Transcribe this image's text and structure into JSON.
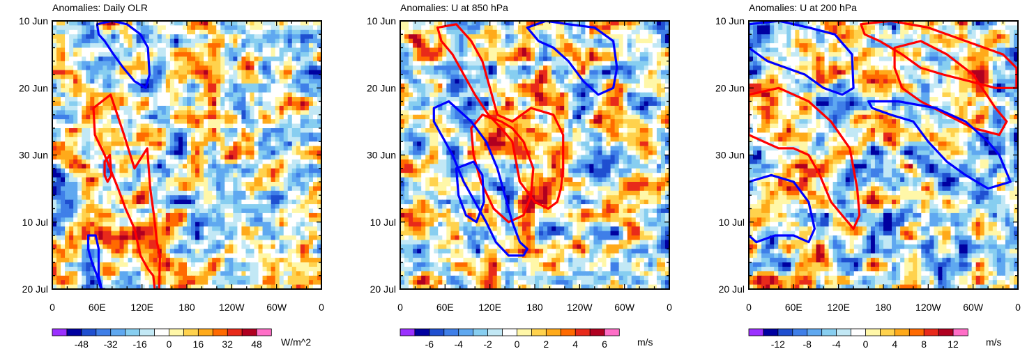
{
  "chart_data": [
    {
      "type": "heatmap",
      "title": "Anomalies: Daily OLR",
      "xlabel": "",
      "ylabel": "",
      "x_tick_labels": [
        "0",
        "60E",
        "120E",
        "180",
        "120W",
        "60W",
        "0"
      ],
      "x_range_deg": [
        0,
        360
      ],
      "y_tick_labels": [
        "10 Jun",
        "20 Jun",
        "30 Jun",
        "10 Jul",
        "20 Jul"
      ],
      "y_range_days": [
        0,
        40
      ],
      "colorbar": {
        "labels": [
          "-48",
          "-32",
          "-16",
          "0",
          "16",
          "32",
          "48"
        ],
        "units": "W/m^2",
        "levels": [
          -56,
          -48,
          -40,
          -32,
          -24,
          -16,
          -8,
          0,
          8,
          16,
          24,
          32,
          40,
          48,
          56
        ],
        "colors": [
          "#9b30ff",
          "#0000a0",
          "#1f4fd0",
          "#3f7fe8",
          "#5fa8f0",
          "#87cef0",
          "#c2e8f5",
          "#ffffff",
          "#fff7a8",
          "#ffd24d",
          "#ffaa1a",
          "#ff6a00",
          "#e82a1a",
          "#b00020",
          "#ff6ec7"
        ]
      },
      "contours": [
        {
          "sign": "positive",
          "color": "#ff0000",
          "points": [
            [
              55,
              13
            ],
            [
              78,
              11
            ],
            [
              96,
              17
            ],
            [
              110,
              22
            ],
            [
              127,
              19
            ],
            [
              131,
              25
            ],
            [
              136,
              29
            ],
            [
              140,
              33
            ],
            [
              144,
              35
            ],
            [
              143,
              40
            ],
            [
              138,
              41
            ],
            [
              135,
              38
            ],
            [
              128,
              37
            ],
            [
              118,
              35
            ],
            [
              110,
              31
            ],
            [
              98,
              28
            ],
            [
              88,
              25
            ],
            [
              70,
              20
            ],
            [
              57,
              17
            ]
          ]
        },
        {
          "sign": "positive",
          "color": "#ff0000",
          "points": [
            [
              70,
              21
            ],
            [
              77,
              20
            ],
            [
              79,
              23
            ],
            [
              74,
              24
            ],
            [
              70,
              23
            ]
          ]
        },
        {
          "sign": "negative",
          "color": "#0000ff",
          "points": [
            [
              60,
              0.5
            ],
            [
              80,
              0
            ],
            [
              100,
              0.5
            ],
            [
              118,
              2
            ],
            [
              128,
              4
            ],
            [
              130,
              8
            ],
            [
              125,
              10
            ],
            [
              110,
              9
            ],
            [
              95,
              7
            ],
            [
              82,
              5
            ],
            [
              70,
              3
            ],
            [
              62,
              2
            ]
          ]
        },
        {
          "sign": "negative",
          "color": "#0000ff",
          "points": [
            [
              48,
              32
            ],
            [
              58,
              32
            ],
            [
              62,
              34
            ],
            [
              62,
              38
            ],
            [
              66,
              40
            ],
            [
              70,
              40
            ],
            [
              72,
              41
            ],
            [
              68,
              41
            ],
            [
              60,
              38
            ],
            [
              53,
              36
            ],
            [
              48,
              34
            ]
          ]
        }
      ]
    },
    {
      "type": "heatmap",
      "title": "Anomalies: U at 850 hPa",
      "xlabel": "",
      "ylabel": "",
      "x_tick_labels": [
        "0",
        "60E",
        "120E",
        "180",
        "120W",
        "60W",
        "0"
      ],
      "x_range_deg": [
        0,
        360
      ],
      "y_tick_labels": [
        "10 Jun",
        "20 Jun",
        "30 Jun",
        "10 Jul",
        "20 Jul"
      ],
      "y_range_days": [
        0,
        40
      ],
      "colorbar": {
        "labels": [
          "-6",
          "-4",
          "-2",
          "0",
          "2",
          "4",
          "6"
        ],
        "units": "m/s",
        "levels": [
          -7,
          -6,
          -5,
          -4,
          -3,
          -2,
          -1,
          0,
          1,
          2,
          3,
          4,
          5,
          6,
          7
        ],
        "colors": [
          "#9b30ff",
          "#0000a0",
          "#1f4fd0",
          "#3f7fe8",
          "#5fa8f0",
          "#87cef0",
          "#c2e8f5",
          "#ffffff",
          "#fff7a8",
          "#ffd24d",
          "#ffaa1a",
          "#ff6a00",
          "#e82a1a",
          "#b00020",
          "#ff6ec7"
        ]
      },
      "contours": [
        {
          "sign": "positive",
          "color": "#ff0000",
          "points": [
            [
              50,
              1
            ],
            [
              75,
              0.5
            ],
            [
              95,
              3
            ],
            [
              110,
              6
            ],
            [
              120,
              10
            ],
            [
              130,
              14
            ],
            [
              150,
              15
            ],
            [
              175,
              13
            ],
            [
              205,
              14
            ],
            [
              218,
              17
            ],
            [
              218,
              22
            ],
            [
              215,
              25
            ],
            [
              210,
              27
            ],
            [
              198,
              28
            ],
            [
              180,
              27
            ],
            [
              160,
              24
            ],
            [
              150,
              18
            ],
            [
              135,
              16
            ],
            [
              118,
              14
            ],
            [
              100,
              11
            ],
            [
              85,
              8
            ],
            [
              70,
              5
            ],
            [
              55,
              3
            ]
          ]
        },
        {
          "sign": "positive",
          "color": "#ff0000",
          "points": [
            [
              95,
              16
            ],
            [
              110,
              14
            ],
            [
              135,
              15
            ],
            [
              150,
              16
            ],
            [
              165,
              18
            ],
            [
              178,
              22
            ],
            [
              175,
              26
            ],
            [
              165,
              29
            ],
            [
              145,
              30
            ],
            [
              125,
              28
            ],
            [
              108,
              24
            ],
            [
              98,
              20
            ]
          ]
        },
        {
          "sign": "negative",
          "color": "#0000ff",
          "points": [
            [
              170,
              1
            ],
            [
              195,
              0
            ],
            [
              225,
              0.5
            ],
            [
              260,
              1
            ],
            [
              285,
              3
            ],
            [
              290,
              7
            ],
            [
              285,
              10
            ],
            [
              265,
              11
            ],
            [
              245,
              9
            ],
            [
              225,
              6
            ],
            [
              205,
              4
            ],
            [
              185,
              3
            ]
          ]
        },
        {
          "sign": "negative",
          "color": "#0000ff",
          "points": [
            [
              45,
              13
            ],
            [
              65,
              12
            ],
            [
              95,
              15
            ],
            [
              115,
              18
            ],
            [
              130,
              22
            ],
            [
              140,
              26
            ],
            [
              150,
              30
            ],
            [
              160,
              33
            ],
            [
              170,
              34
            ],
            [
              165,
              35
            ],
            [
              145,
              35
            ],
            [
              128,
              33
            ],
            [
              115,
              30
            ],
            [
              100,
              27
            ],
            [
              85,
              24
            ],
            [
              70,
              20
            ],
            [
              55,
              17
            ],
            [
              45,
              15
            ]
          ]
        },
        {
          "sign": "negative",
          "color": "#0000ff",
          "points": [
            [
              75,
              22
            ],
            [
              98,
              21
            ],
            [
              110,
              23
            ],
            [
              112,
              27
            ],
            [
              102,
              30
            ],
            [
              88,
              29
            ],
            [
              78,
              26
            ]
          ]
        }
      ]
    },
    {
      "type": "heatmap",
      "title": "Anomalies: U at 200 hPa",
      "xlabel": "",
      "ylabel": "",
      "x_tick_labels": [
        "0",
        "60E",
        "120E",
        "180",
        "120W",
        "60W",
        "0"
      ],
      "x_range_deg": [
        0,
        360
      ],
      "y_tick_labels": [
        "10 Jun",
        "20 Jun",
        "30 Jun",
        "10 Jul",
        "20 Jul"
      ],
      "y_range_days": [
        0,
        40
      ],
      "colorbar": {
        "labels": [
          "-12",
          "-8",
          "-4",
          "0",
          "4",
          "8",
          "12"
        ],
        "units": "m/s",
        "levels": [
          -14,
          -12,
          -10,
          -8,
          -6,
          -4,
          -2,
          0,
          2,
          4,
          6,
          8,
          10,
          12,
          14
        ],
        "colors": [
          "#9b30ff",
          "#0000a0",
          "#1f4fd0",
          "#3f7fe8",
          "#5fa8f0",
          "#87cef0",
          "#c2e8f5",
          "#ffffff",
          "#fff7a8",
          "#ffd24d",
          "#ffaa1a",
          "#ff6a00",
          "#e82a1a",
          "#b00020",
          "#ff6ec7"
        ]
      },
      "contours": [
        {
          "sign": "positive",
          "color": "#ff0000",
          "points": [
            [
              150,
              0.5
            ],
            [
              190,
              0
            ],
            [
              240,
              1
            ],
            [
              290,
              3
            ],
            [
              340,
              5
            ],
            [
              358,
              7
            ],
            [
              358,
              10
            ],
            [
              330,
              10
            ],
            [
              295,
              9
            ],
            [
              260,
              8
            ],
            [
              230,
              7
            ],
            [
              205,
              5
            ],
            [
              175,
              3
            ],
            [
              155,
              2
            ]
          ]
        },
        {
          "sign": "positive",
          "color": "#ff0000",
          "points": [
            [
              195,
              4
            ],
            [
              230,
              3
            ],
            [
              265,
              5
            ],
            [
              300,
              8
            ],
            [
              330,
              13
            ],
            [
              345,
              15
            ],
            [
              335,
              17
            ],
            [
              300,
              16
            ],
            [
              265,
              14
            ],
            [
              230,
              12
            ],
            [
              205,
              10
            ],
            [
              195,
              7
            ]
          ]
        },
        {
          "sign": "positive",
          "color": "#ff0000",
          "points": [
            [
              0,
              11
            ],
            [
              40,
              10
            ],
            [
              80,
              12
            ],
            [
              110,
              15
            ],
            [
              135,
              19
            ],
            [
              145,
              25
            ],
            [
              148,
              29
            ],
            [
              140,
              31
            ],
            [
              125,
              29
            ],
            [
              110,
              27
            ],
            [
              95,
              23
            ],
            [
              80,
              20
            ],
            [
              60,
              19
            ],
            [
              40,
              19
            ],
            [
              20,
              18
            ],
            [
              0,
              17
            ]
          ]
        },
        {
          "sign": "negative",
          "color": "#0000ff",
          "points": [
            [
              0,
              0.5
            ],
            [
              40,
              0
            ],
            [
              80,
              1
            ],
            [
              115,
              2
            ],
            [
              138,
              5
            ],
            [
              140,
              10
            ],
            [
              125,
              11
            ],
            [
              100,
              10
            ],
            [
              75,
              8
            ],
            [
              50,
              7
            ],
            [
              25,
              6
            ],
            [
              0,
              4
            ]
          ]
        },
        {
          "sign": "negative",
          "color": "#0000ff",
          "points": [
            [
              160,
              12
            ],
            [
              200,
              12
            ],
            [
              250,
              13
            ],
            [
              290,
              15
            ],
            [
              320,
              18
            ],
            [
              335,
              20
            ],
            [
              350,
              24
            ],
            [
              320,
              25
            ],
            [
              290,
              23
            ],
            [
              265,
              21
            ],
            [
              240,
              18
            ],
            [
              220,
              15
            ],
            [
              190,
              14
            ],
            [
              165,
              13
            ]
          ]
        },
        {
          "sign": "negative",
          "color": "#0000ff",
          "points": [
            [
              0,
              24
            ],
            [
              30,
              23
            ],
            [
              60,
              24
            ],
            [
              80,
              27
            ],
            [
              88,
              31
            ],
            [
              80,
              33
            ],
            [
              60,
              32
            ],
            [
              35,
              32
            ],
            [
              10,
              33
            ],
            [
              0,
              32
            ]
          ]
        }
      ]
    }
  ]
}
